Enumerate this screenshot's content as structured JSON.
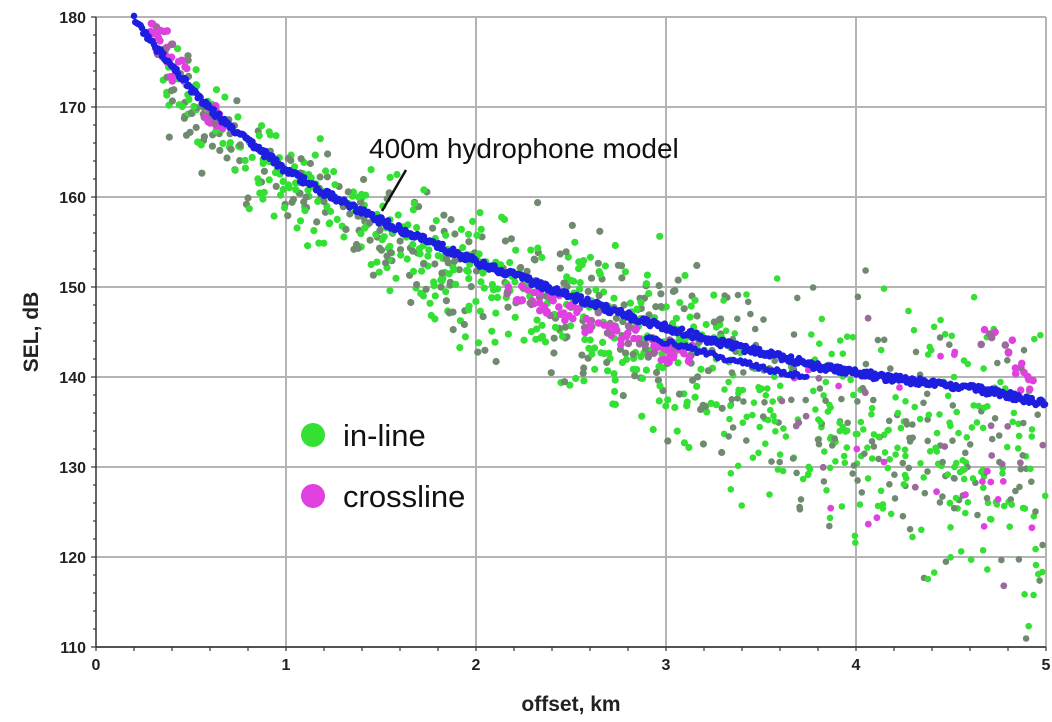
{
  "chart_data": {
    "type": "scatter",
    "xlabel": "offset, km",
    "ylabel": "SEL, dB",
    "xlim": [
      0,
      5
    ],
    "ylim": [
      110,
      180
    ],
    "x_ticks": [
      "0",
      "1",
      "2",
      "3",
      "4",
      "5"
    ],
    "y_ticks": [
      "110",
      "120",
      "130",
      "140",
      "150",
      "160",
      "170",
      "180"
    ],
    "grid": true,
    "legend_position": "lower-left",
    "annotation": {
      "text": "400m hydrophone model",
      "points_to": {
        "x": 1.5,
        "y": 157.5
      }
    },
    "colors": {
      "in_line": "#33e033",
      "in_line_alt": "#6f8a6f",
      "crossline": "#e040e0",
      "crossline_alt": "#9a6a9a",
      "model": "#1e1ee0",
      "grid": "#b4b4b4"
    },
    "series": [
      {
        "name": "in-line",
        "marker": "circle",
        "trend": {
          "x": [
            0.35,
            0.5,
            0.7,
            1.0,
            1.5,
            2.0,
            2.5,
            3.0,
            3.5,
            4.0,
            4.5,
            5.0
          ],
          "y": [
            173.5,
            170.5,
            166.5,
            162.0,
            156.0,
            151.5,
            147.5,
            143.5,
            138.5,
            134.5,
            131.5,
            129.0
          ]
        },
        "x_range": [
          0.35,
          5.0
        ],
        "spread_dB": [
          5.5,
          18.0
        ]
      },
      {
        "name": "crossline",
        "marker": "circle",
        "x": [
          0.32,
          0.33,
          0.34,
          0.36,
          0.38,
          0.4,
          0.42,
          0.44,
          0.6,
          0.62,
          0.64,
          0.66,
          2.2,
          2.3,
          2.4,
          2.5,
          2.6,
          2.7,
          2.8,
          2.9,
          3.0,
          3.05,
          3.1,
          4.7,
          4.8,
          4.85,
          4.9
        ],
        "y": [
          179.5,
          179.0,
          177.5,
          177.0,
          176.5,
          175.5,
          174.5,
          173.5,
          169.5,
          169.0,
          168.5,
          168.0,
          149.5,
          148.5,
          148.0,
          147.0,
          146.0,
          145.5,
          144.5,
          143.5,
          143.0,
          142.5,
          142.5,
          144.5,
          143.0,
          141.0,
          139.5
        ]
      },
      {
        "name": "400m hydrophone model",
        "marker": "dot-line",
        "x": [
          0.2,
          0.3,
          0.4,
          0.5,
          0.6,
          0.7,
          0.8,
          0.9,
          1.0,
          1.2,
          1.4,
          1.6,
          1.8,
          2.0,
          2.2,
          2.4,
          2.6,
          2.8,
          3.0,
          3.2,
          3.4,
          3.6,
          3.8,
          4.0,
          4.2,
          4.4,
          4.6,
          4.8,
          5.0
        ],
        "y": [
          180.0,
          177.0,
          174.5,
          172.0,
          169.8,
          168.0,
          166.3,
          164.6,
          163.0,
          160.5,
          158.3,
          156.4,
          154.6,
          152.8,
          151.3,
          149.7,
          148.2,
          146.8,
          145.5,
          144.3,
          143.2,
          142.2,
          141.2,
          140.5,
          139.8,
          139.3,
          138.8,
          138.0,
          137.0
        ]
      }
    ]
  }
}
